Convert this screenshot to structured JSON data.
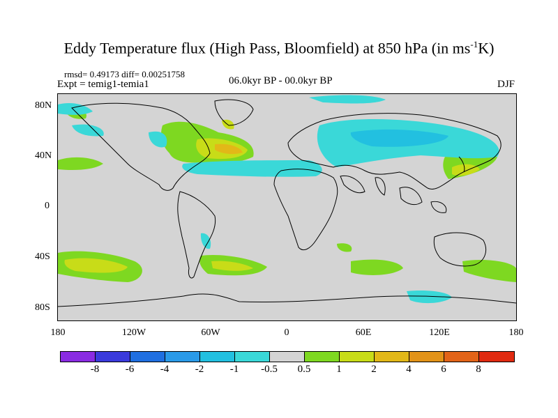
{
  "title": "Eddy Temperature flux (High Pass, Bloomfield) at 850 hPa (in ms",
  "title_sup": "-1",
  "title_end": "K)",
  "stats": "rmsd= 0.49173 diff= 0.00251758",
  "expt": "Expt = temig1-temia1",
  "period": "06.0kyr BP - 00.0kyr BP",
  "season": "DJF",
  "map": {
    "projection": "cylindrical equidistant",
    "lon_range": [
      -180,
      180
    ],
    "lat_range": [
      -90,
      90
    ],
    "ocean_land_background": "#d4d4d4",
    "ytick_labels": [
      "80N",
      "40N",
      "0",
      "40S",
      "80S"
    ],
    "xtick_labels": [
      "180",
      "120W",
      "60W",
      "0",
      "60E",
      "120E",
      "180"
    ]
  },
  "colorbar": {
    "colors": [
      "#8a2be2",
      "#3a3adc",
      "#1f6fe0",
      "#2a9ae8",
      "#22c0e0",
      "#3ad8d8",
      "#d4d4d4",
      "#7ed821",
      "#c8dc18",
      "#e2b818",
      "#e29318",
      "#e26418",
      "#e02a10"
    ],
    "labels": [
      "-8",
      "-6",
      "-4",
      "-2",
      "-1",
      "-0.5",
      "0.5",
      "1",
      "2",
      "4",
      "6",
      "8"
    ]
  }
}
